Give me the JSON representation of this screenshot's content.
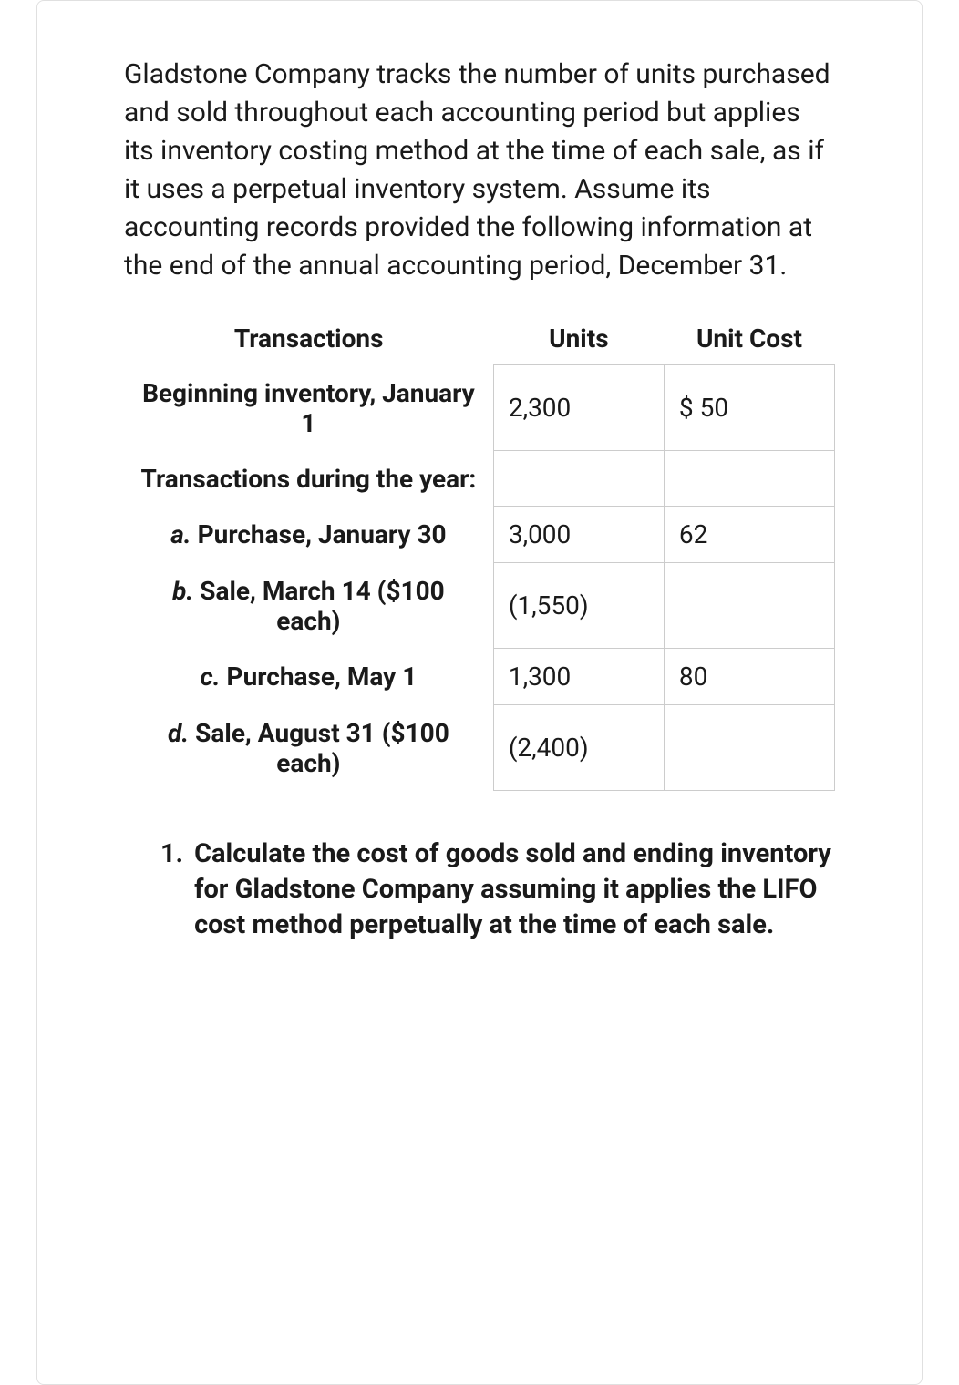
{
  "intro": "Gladstone Company tracks the number of units purchased and sold throughout each accounting period but applies its inventory costing method at the time of each sale, as if it uses a perpetual inventory system. Assume its accounting records provided the following information at the end of the annual accounting period, December 31.",
  "table": {
    "headers": {
      "transactions": "Transactions",
      "units": "Units",
      "unit_cost": "Unit Cost"
    },
    "rows": [
      {
        "prefix": "",
        "label": "Beginning inventory, January 1",
        "units": "2,300",
        "unit_cost": "$ 50"
      },
      {
        "prefix": "",
        "label": "Transactions during the year:",
        "units": "",
        "unit_cost": ""
      },
      {
        "prefix": "a.",
        "label": " Purchase, January 30",
        "units": "3,000",
        "unit_cost": "62"
      },
      {
        "prefix": "b.",
        "label": " Sale, March 14 ($100 each)",
        "units": "(1,550)",
        "unit_cost": ""
      },
      {
        "prefix": "c.",
        "label": " Purchase, May 1",
        "units": "1,300",
        "unit_cost": "80"
      },
      {
        "prefix": "d.",
        "label": " Sale, August 31 ($100 each)",
        "units": "(2,400)",
        "unit_cost": ""
      }
    ]
  },
  "question": {
    "number": "1.",
    "text": "Calculate the cost of goods sold and ending inventory for Gladstone Company assuming it applies the LIFO cost method perpetually at the time of each sale."
  }
}
